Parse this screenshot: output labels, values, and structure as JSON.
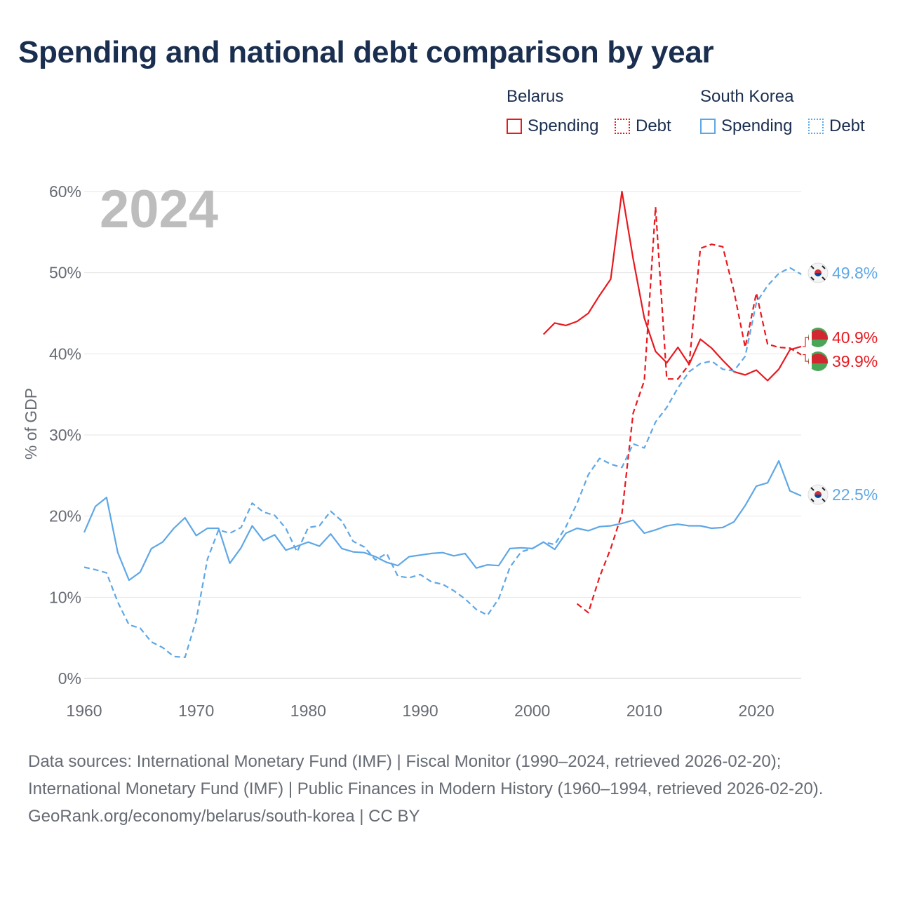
{
  "title": "Spending and national debt comparison by year",
  "year_label": "2024",
  "legend": {
    "groups": [
      {
        "name": "Belarus",
        "items": [
          {
            "label": "Spending",
            "style": "solid",
            "color": "#e8191f"
          },
          {
            "label": "Debt",
            "style": "dotted",
            "color": "#e8191f"
          }
        ]
      },
      {
        "name": "South Korea",
        "items": [
          {
            "label": "Spending",
            "style": "solid",
            "color": "#5ea7e6"
          },
          {
            "label": "Debt",
            "style": "dotted",
            "color": "#5ea7e6"
          }
        ]
      }
    ]
  },
  "footer": {
    "sources": "Data sources: International Monetary Fund (IMF) | Fiscal Monitor (1990–2024, retrieved 2026-02-20); International Monetary Fund (IMF) | Public Finances in Modern History (1960–1994, retrieved 2026-02-20).",
    "credit": "GeoRank.org/economy/belarus/south-korea | CC BY"
  },
  "chart_data": {
    "type": "line",
    "title": "Spending and national debt comparison by year",
    "xlabel": "",
    "ylabel": "% of GDP",
    "xlim": [
      1960,
      2024
    ],
    "ylim": [
      0,
      60
    ],
    "xticks": [
      1960,
      1970,
      1980,
      1990,
      2000,
      2010,
      2020
    ],
    "yticks": [
      0,
      10,
      20,
      30,
      40,
      50,
      60
    ],
    "ytick_labels": [
      "0%",
      "10%",
      "20%",
      "30%",
      "40%",
      "50%",
      "60%"
    ],
    "grid": true,
    "series": [
      {
        "name": "Belarus Spending",
        "country": "Belarus",
        "color": "#e8191f",
        "dash": "solid",
        "end_label": "40.9%",
        "x": [
          2001,
          2002,
          2003,
          2004,
          2005,
          2006,
          2007,
          2008,
          2009,
          2010,
          2011,
          2012,
          2013,
          2014,
          2015,
          2016,
          2017,
          2018,
          2019,
          2020,
          2021,
          2022,
          2023,
          2024
        ],
        "y": [
          42.4,
          43.8,
          43.5,
          44.0,
          45.0,
          47.2,
          49.2,
          60.0,
          51.7,
          44.4,
          40.3,
          38.9,
          40.8,
          38.7,
          41.8,
          40.7,
          39.2,
          37.8,
          37.4,
          38.0,
          36.7,
          38.1,
          40.5,
          40.9
        ]
      },
      {
        "name": "Belarus Debt",
        "country": "Belarus",
        "color": "#e8191f",
        "dash": "dashed",
        "end_label": "39.9%",
        "x": [
          2004,
          2005,
          2006,
          2007,
          2008,
          2009,
          2010,
          2011,
          2012,
          2013,
          2014,
          2015,
          2016,
          2017,
          2018,
          2019,
          2020,
          2021,
          2022,
          2023,
          2024
        ],
        "y": [
          9.2,
          8.1,
          12.5,
          16.0,
          20.3,
          32.7,
          36.7,
          58.1,
          36.9,
          36.9,
          38.7,
          53.0,
          53.5,
          53.2,
          47.7,
          40.8,
          47.5,
          41.2,
          40.8,
          40.7,
          39.9
        ]
      },
      {
        "name": "South Korea Spending",
        "country": "South Korea",
        "color": "#5ea7e6",
        "dash": "solid",
        "end_label": "22.5%",
        "x": [
          1960,
          1961,
          1962,
          1963,
          1964,
          1965,
          1966,
          1967,
          1968,
          1969,
          1970,
          1971,
          1972,
          1973,
          1974,
          1975,
          1976,
          1977,
          1978,
          1979,
          1980,
          1981,
          1982,
          1983,
          1984,
          1985,
          1986,
          1987,
          1988,
          1989,
          1990,
          1991,
          1992,
          1993,
          1994,
          1995,
          1996,
          1997,
          1998,
          1999,
          2000,
          2001,
          2002,
          2003,
          2004,
          2005,
          2006,
          2007,
          2008,
          2009,
          2010,
          2011,
          2012,
          2013,
          2014,
          2015,
          2016,
          2017,
          2018,
          2019,
          2020,
          2021,
          2022,
          2023,
          2024
        ],
        "y": [
          18.0,
          21.2,
          22.3,
          15.5,
          12.1,
          13.1,
          16.0,
          16.8,
          18.5,
          19.8,
          17.6,
          18.5,
          18.5,
          14.2,
          16.1,
          18.8,
          17.0,
          17.7,
          15.8,
          16.3,
          16.8,
          16.3,
          17.8,
          16.0,
          15.6,
          15.5,
          15.0,
          14.3,
          13.9,
          15.0,
          15.2,
          15.4,
          15.5,
          15.1,
          15.4,
          13.6,
          14.0,
          13.9,
          16.0,
          16.1,
          16.0,
          16.8,
          15.9,
          17.9,
          18.5,
          18.2,
          18.7,
          18.8,
          19.1,
          19.5,
          17.9,
          18.3,
          18.8,
          19.0,
          18.8,
          18.8,
          18.5,
          18.6,
          19.3,
          21.3,
          23.7,
          24.1,
          26.8,
          23.1,
          22.5
        ]
      },
      {
        "name": "South Korea Debt",
        "country": "South Korea",
        "color": "#5ea7e6",
        "dash": "dashed",
        "end_label": "49.8%",
        "x": [
          1960,
          1961,
          1962,
          1963,
          1964,
          1965,
          1966,
          1967,
          1968,
          1969,
          1970,
          1971,
          1972,
          1973,
          1974,
          1975,
          1976,
          1977,
          1978,
          1979,
          1980,
          1981,
          1982,
          1983,
          1984,
          1985,
          1986,
          1987,
          1988,
          1989,
          1990,
          1991,
          1992,
          1993,
          1994,
          1995,
          1996,
          1997,
          1998,
          1999,
          2000,
          2001,
          2002,
          2003,
          2004,
          2005,
          2006,
          2007,
          2008,
          2009,
          2010,
          2011,
          2012,
          2013,
          2014,
          2015,
          2016,
          2017,
          2018,
          2019,
          2020,
          2021,
          2022,
          2023,
          2024
        ],
        "y": [
          13.7,
          13.4,
          13.0,
          9.4,
          6.6,
          6.2,
          4.5,
          3.8,
          2.7,
          2.6,
          7.2,
          14.7,
          18.3,
          17.9,
          18.6,
          21.6,
          20.5,
          20.1,
          18.5,
          15.6,
          18.6,
          18.8,
          20.6,
          19.4,
          16.9,
          16.2,
          14.6,
          15.4,
          12.6,
          12.4,
          12.8,
          11.9,
          11.6,
          10.8,
          9.8,
          8.5,
          7.8,
          9.8,
          13.7,
          15.6,
          16.0,
          16.8,
          16.5,
          18.7,
          21.6,
          25.1,
          27.1,
          26.4,
          26.0,
          28.9,
          28.4,
          31.6,
          33.4,
          35.8,
          37.8,
          38.8,
          39.1,
          38.1,
          37.9,
          39.7,
          46.3,
          48.4,
          49.9,
          50.6,
          49.8
        ]
      }
    ]
  }
}
